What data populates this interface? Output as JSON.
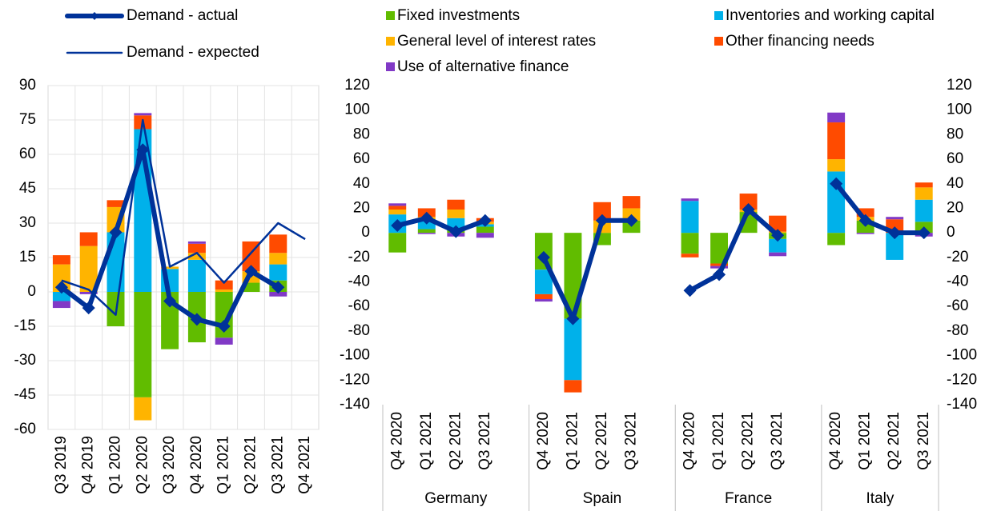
{
  "chart_data": [
    {
      "type": "bar",
      "stacked": true,
      "categories": [
        "Q3 2019",
        "Q4 2019",
        "Q1 2020",
        "Q2 2020",
        "Q3 2020",
        "Q4 2020",
        "Q1 2021",
        "Q2 2021",
        "Q3 2021",
        "Q4 2021"
      ],
      "ylim": [
        -60,
        90
      ],
      "yticks": [
        -60,
        -45,
        -30,
        -15,
        0,
        15,
        30,
        45,
        60,
        75,
        90
      ],
      "grid": true,
      "series": [
        {
          "name": "Fixed investments",
          "type": "bar",
          "color": "#61bc00",
          "values": [
            0,
            0,
            -15,
            -46,
            -25,
            -22,
            -20,
            4,
            5,
            null
          ]
        },
        {
          "name": "Inventories and working capital",
          "type": "bar",
          "color": "#00b1ea",
          "values": [
            -4,
            0,
            26,
            71,
            10,
            14,
            0,
            0,
            7,
            null
          ]
        },
        {
          "name": "General level of interest rates",
          "type": "bar",
          "color": "#ffb400",
          "values": [
            12,
            20,
            11,
            -10,
            1,
            3,
            1,
            5,
            5,
            null
          ]
        },
        {
          "name": "Other financing needs",
          "type": "bar",
          "color": "#ff4b00",
          "values": [
            4,
            6,
            3,
            6,
            0,
            4,
            4,
            13,
            8,
            null
          ]
        },
        {
          "name": "Use of alternative finance",
          "type": "bar",
          "color": "#8139c6",
          "values": [
            -3,
            -1,
            0,
            1,
            0,
            1,
            -3,
            0,
            -2,
            null
          ]
        },
        {
          "name": "Demand - actual",
          "type": "line",
          "marker": "diamond",
          "line_width": 6,
          "color": "#003299",
          "values": [
            2,
            -7,
            26,
            62,
            -4,
            -12,
            -15,
            9,
            2,
            null
          ]
        },
        {
          "name": "Demand - expected",
          "type": "line",
          "line_width": 2.5,
          "color": "#003299",
          "values": [
            5,
            1,
            -10,
            75,
            11,
            17,
            4,
            17,
            30,
            23
          ]
        }
      ]
    },
    {
      "type": "bar",
      "stacked": true,
      "categories": [
        "Q4 2020",
        "Q1 2021",
        "Q2 2021",
        "Q3 2021",
        "Q4 2020",
        "Q1 2021",
        "Q2 2021",
        "Q3 2021",
        "Q4 2020",
        "Q1 2021",
        "Q2 2021",
        "Q3 2021",
        "Q4 2020",
        "Q1 2021",
        "Q2 2021",
        "Q3 2021"
      ],
      "groups": [
        "Germany",
        "Spain",
        "France",
        "Italy"
      ],
      "ylim": [
        -140,
        120
      ],
      "yticks": [
        -140,
        -120,
        -100,
        -80,
        -60,
        -40,
        -20,
        0,
        20,
        40,
        60,
        80,
        100,
        120
      ],
      "y2lim": [
        -140,
        120
      ],
      "y2ticks": [
        -140,
        -120,
        -100,
        -80,
        -60,
        -40,
        -20,
        0,
        20,
        40,
        60,
        80,
        100,
        120
      ],
      "grid": false,
      "series": [
        {
          "name": "Fixed investments",
          "type": "bar",
          "color": "#61bc00",
          "values": [
            -16,
            3,
            4,
            5,
            -30,
            -70,
            -10,
            10,
            -17,
            -25,
            17,
            -5,
            -10,
            10,
            0,
            9
          ]
        },
        {
          "name": "Inventories and working capital",
          "type": "bar",
          "color": "#00b1ea",
          "values": [
            15,
            8,
            8,
            2,
            -20,
            -50,
            0,
            0,
            26,
            0,
            0,
            -11,
            50,
            0,
            -22,
            18
          ]
        },
        {
          "name": "General level of interest rates",
          "type": "bar",
          "color": "#ffb400",
          "values": [
            4,
            2,
            7,
            2,
            0,
            0,
            10,
            10,
            0,
            0,
            2,
            1,
            10,
            3,
            0,
            10
          ]
        },
        {
          "name": "Other financing needs",
          "type": "bar",
          "color": "#ff4b00",
          "values": [
            3,
            7,
            8,
            3,
            -4,
            -10,
            15,
            10,
            -3,
            -2,
            13,
            13,
            30,
            7,
            11,
            4
          ]
        },
        {
          "name": "Use of alternative finance",
          "type": "bar",
          "color": "#8139c6",
          "values": [
            2,
            -1,
            -3,
            -4,
            -2,
            0,
            0,
            0,
            2,
            -2,
            0,
            -3,
            8,
            -1,
            2,
            -3
          ]
        },
        {
          "name": "Demand - actual",
          "type": "line",
          "marker": "diamond",
          "line_width": 6,
          "color": "#003299",
          "values": [
            6,
            12,
            1,
            10,
            -20,
            -70,
            10,
            10,
            -47,
            -34,
            19,
            -2,
            40,
            10,
            0,
            0
          ]
        }
      ]
    }
  ]
}
